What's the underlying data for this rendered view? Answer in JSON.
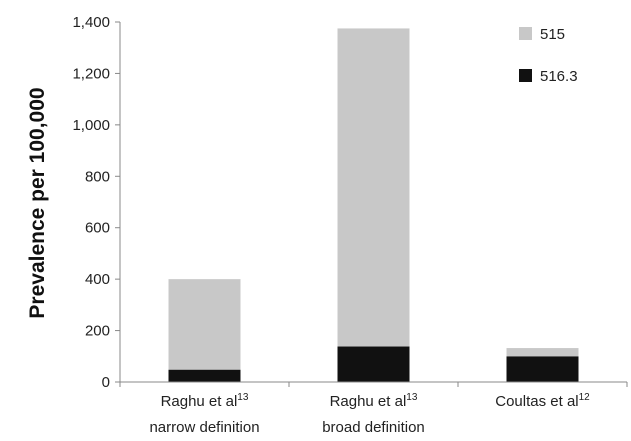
{
  "chart_data": {
    "type": "bar",
    "stacked": true,
    "categories": [
      {
        "line1": "Raghu et al",
        "sup": "13",
        "line2": "narrow definition"
      },
      {
        "line1": "Raghu et al",
        "sup": "13",
        "line2": "broad definition"
      },
      {
        "line1": "Coultas et al",
        "sup": "12",
        "line2": ""
      }
    ],
    "series": [
      {
        "name": "516.3",
        "color": "#111111",
        "values": [
          48,
          138,
          100
        ]
      },
      {
        "name": "515",
        "color": "#c8c8c8",
        "values": [
          352,
          1237,
          32
        ]
      }
    ],
    "ylabel": "Prevalence per 100,000",
    "xlabel": "",
    "ylim": [
      0,
      1400
    ],
    "yticks": [
      "0",
      "200",
      "400",
      "600",
      "800",
      "1,000",
      "1,200",
      "1,400"
    ],
    "ytick_values": [
      0,
      200,
      400,
      600,
      800,
      1000,
      1200,
      1400
    ],
    "legend_position": "top-right",
    "grid": false
  }
}
